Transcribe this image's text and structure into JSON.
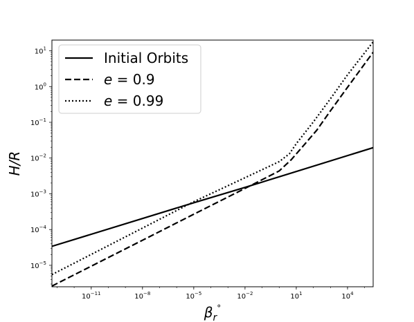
{
  "chart_data": {
    "type": "line",
    "xlabel": "β_r°",
    "ylabel": "H/R",
    "xscale": "log",
    "yscale": "log",
    "xlim_log10": [
      -13.3,
      5.5
    ],
    "ylim_log10": [
      -5.6,
      1.3
    ],
    "x_ticks": [
      {
        "log10": -11,
        "label": "10",
        "exp": "−11"
      },
      {
        "log10": -8,
        "label": "10",
        "exp": "−8"
      },
      {
        "log10": -5,
        "label": "10",
        "exp": "−5"
      },
      {
        "log10": -2,
        "label": "10",
        "exp": "−2"
      },
      {
        "log10": 1,
        "label": "10",
        "exp": "1"
      },
      {
        "log10": 4,
        "label": "10",
        "exp": "4"
      }
    ],
    "y_ticks": [
      {
        "log10": -5,
        "label": "10",
        "exp": "−5"
      },
      {
        "log10": -4,
        "label": "10",
        "exp": "−4"
      },
      {
        "log10": -3,
        "label": "10",
        "exp": "−3"
      },
      {
        "log10": -2,
        "label": "10",
        "exp": "−2"
      },
      {
        "log10": -1,
        "label": "10",
        "exp": "−1"
      },
      {
        "log10": 0,
        "label": "10",
        "exp": "0"
      },
      {
        "log10": 1,
        "label": "10",
        "exp": "1"
      }
    ],
    "legend_position": "top-left",
    "series": [
      {
        "name": "Initial Orbits",
        "style": "solid",
        "color": "#000000",
        "points_log10": [
          [
            -13.3,
            -4.47
          ],
          [
            -5.0,
            -3.25
          ],
          [
            -2.0,
            -2.82
          ],
          [
            5.5,
            -1.71
          ]
        ]
      },
      {
        "name": "e = 0.9",
        "style": "dashed",
        "color": "#000000",
        "points_log10": [
          [
            -13.3,
            -5.58
          ],
          [
            -8.0,
            -4.3
          ],
          [
            -5.0,
            -3.57
          ],
          [
            -2.0,
            -2.85
          ],
          [
            0.0,
            -2.36
          ],
          [
            0.7,
            -2.05
          ],
          [
            1.3,
            -1.72
          ],
          [
            2.2,
            -1.22
          ],
          [
            3.0,
            -0.68
          ],
          [
            4.0,
            -0.02
          ],
          [
            5.5,
            0.96
          ]
        ]
      },
      {
        "name": "e = 0.99",
        "style": "dotted",
        "color": "#000000",
        "points_log10": [
          [
            -13.3,
            -5.26
          ],
          [
            -8.0,
            -3.96
          ],
          [
            -5.0,
            -3.22
          ],
          [
            -2.0,
            -2.55
          ],
          [
            0.0,
            -2.1
          ],
          [
            0.6,
            -1.88
          ],
          [
            1.0,
            -1.6
          ],
          [
            2.0,
            -0.99
          ],
          [
            3.0,
            -0.34
          ],
          [
            4.0,
            0.33
          ],
          [
            5.5,
            1.25
          ]
        ]
      }
    ],
    "legend": [
      {
        "prefix": "",
        "label": "Initial Orbits"
      },
      {
        "prefix": "e",
        "label": " = 0.9"
      },
      {
        "prefix": "e",
        "label": " = 0.99"
      }
    ]
  }
}
